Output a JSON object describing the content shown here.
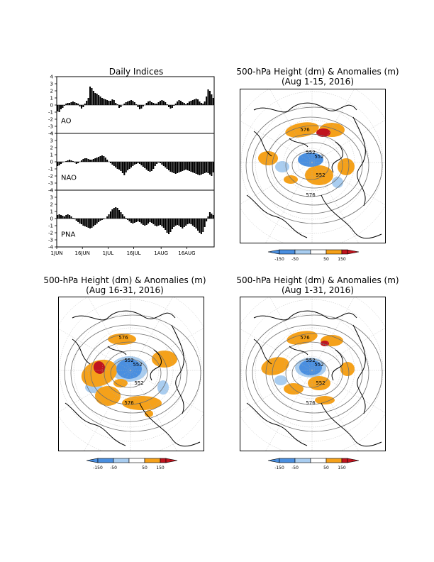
{
  "colors": {
    "orange": "#f5a11a",
    "red": "#c0141e",
    "blue": "#4a8fe0",
    "lightblue": "#a9cdf0",
    "land": "#000000",
    "contour": "#6e6e6e"
  },
  "indices": {
    "title": "Daily Indices",
    "x_ticks": [
      "1JUN",
      "16JUN",
      "1JUL",
      "16JUL",
      "1AUG",
      "16AUG"
    ],
    "y_ticks": [
      "4",
      "3",
      "2",
      "1",
      "0",
      "-1",
      "-2",
      "-3",
      "-4"
    ],
    "y_ticks_bottom": [
      "4",
      "3",
      "2",
      "1",
      "0",
      "-1",
      "-2",
      "-3",
      "-4"
    ],
    "ao_label": "AO",
    "nao_label": "NAO",
    "pna_label": "PNA"
  },
  "maps": [
    {
      "title_line1": "500-hPa Height (dm) & Anomalies (m)",
      "title_line2": "(Aug 1-15, 2016)",
      "contour_labels": [
        "576",
        "552",
        "576",
        "552",
        "552"
      ]
    },
    {
      "title_line1": "500-hPa Height (dm) & Anomalies (m)",
      "title_line2": "(Aug 16-31, 2016)",
      "contour_labels": [
        "576",
        "552",
        "576",
        "552",
        "552"
      ]
    },
    {
      "title_line1": "500-hPa Height (dm) & Anomalies (m)",
      "title_line2": "(Aug 1-31, 2016)",
      "contour_labels": [
        "576",
        "552",
        "576",
        "552",
        "552"
      ]
    }
  ],
  "colorbar": {
    "labels": [
      "-150",
      "-50",
      "50",
      "150"
    ]
  },
  "chart_data": [
    {
      "type": "bar",
      "title": "Daily Indices",
      "series": [
        {
          "name": "AO",
          "values": [
            -0.9,
            -1.0,
            -0.6,
            -0.4,
            -0.1,
            0.2,
            0.3,
            0.3,
            0.4,
            0.5,
            0.4,
            0.3,
            0.2,
            -0.2,
            -0.5,
            -0.3,
            0.2,
            0.6,
            1.0,
            2.6,
            2.4,
            2.0,
            1.7,
            1.6,
            1.4,
            1.2,
            1.0,
            0.9,
            0.8,
            0.7,
            0.6,
            0.6,
            0.8,
            0.7,
            0.3,
            0.1,
            -0.4,
            -0.3,
            0.0,
            0.2,
            0.4,
            0.5,
            0.6,
            0.7,
            0.6,
            0.4,
            0.1,
            -0.3,
            -0.6,
            -0.5,
            -0.2,
            0.0,
            0.3,
            0.5,
            0.6,
            0.4,
            0.3,
            0.2,
            0.2,
            0.4,
            0.6,
            0.7,
            0.6,
            0.4,
            0.1,
            -0.3,
            -0.5,
            -0.4,
            -0.1,
            0.2,
            0.5,
            0.7,
            0.6,
            0.4,
            0.3,
            0.1,
            0.3,
            0.5,
            0.6,
            0.7,
            0.8,
            0.9,
            0.8,
            0.5,
            0.3,
            0.2,
            0.5,
            1.2,
            2.2,
            2.0,
            1.5,
            1.0
          ]
        },
        {
          "name": "NAO",
          "values": [
            -0.6,
            -0.5,
            -0.3,
            -0.1,
            0.0,
            0.1,
            0.2,
            0.3,
            0.2,
            0.1,
            -0.1,
            -0.3,
            -0.2,
            0.0,
            0.2,
            0.4,
            0.5,
            0.5,
            0.4,
            0.3,
            0.3,
            0.4,
            0.5,
            0.6,
            0.7,
            0.8,
            0.9,
            0.8,
            0.6,
            0.3,
            0.0,
            -0.2,
            -0.4,
            -0.6,
            -0.8,
            -1.0,
            -1.1,
            -1.3,
            -1.6,
            -1.9,
            -1.5,
            -1.2,
            -1.0,
            -0.8,
            -0.6,
            -0.4,
            -0.3,
            -0.2,
            -0.3,
            -0.5,
            -0.7,
            -0.9,
            -1.1,
            -1.3,
            -1.4,
            -1.3,
            -1.0,
            -0.6,
            -0.3,
            -0.1,
            -0.2,
            -0.4,
            -0.6,
            -0.8,
            -1.0,
            -1.2,
            -1.4,
            -1.5,
            -1.6,
            -1.7,
            -1.6,
            -1.5,
            -1.4,
            -1.3,
            -1.2,
            -1.1,
            -1.2,
            -1.3,
            -1.4,
            -1.5,
            -1.6,
            -1.7,
            -1.8,
            -1.9,
            -1.8,
            -1.7,
            -1.6,
            -1.5,
            -1.6,
            -1.8,
            -2.0,
            -1.5
          ]
        },
        {
          "name": "PNA",
          "values": [
            0.5,
            0.6,
            0.5,
            0.4,
            0.3,
            0.5,
            0.6,
            0.5,
            0.3,
            0.1,
            -0.1,
            -0.3,
            -0.5,
            -0.7,
            -0.8,
            -1.0,
            -1.1,
            -1.2,
            -1.3,
            -1.4,
            -1.3,
            -1.1,
            -0.9,
            -0.7,
            -0.5,
            -0.3,
            -0.2,
            -0.1,
            0.0,
            0.3,
            0.6,
            1.0,
            1.3,
            1.5,
            1.6,
            1.5,
            1.2,
            0.9,
            0.6,
            0.3,
            0.1,
            -0.2,
            -0.4,
            -0.6,
            -0.7,
            -0.6,
            -0.5,
            -0.4,
            -0.5,
            -0.7,
            -0.9,
            -1.0,
            -0.9,
            -0.7,
            -0.5,
            -0.6,
            -0.8,
            -1.0,
            -1.1,
            -1.0,
            -0.9,
            -1.1,
            -1.3,
            -1.6,
            -2.0,
            -2.2,
            -1.9,
            -1.5,
            -1.2,
            -1.0,
            -0.9,
            -1.0,
            -1.2,
            -1.4,
            -1.2,
            -1.0,
            -0.8,
            -0.7,
            -0.8,
            -1.0,
            -1.2,
            -1.4,
            -1.7,
            -2.0,
            -2.2,
            -1.9,
            -1.2,
            -0.4,
            0.3,
            0.9,
            0.7,
            0.5
          ]
        }
      ],
      "x_tick_labels": [
        "1JUN",
        "16JUN",
        "1JUL",
        "16JUL",
        "1AUG",
        "16AUG"
      ],
      "ylim": [
        -4,
        4
      ]
    }
  ]
}
